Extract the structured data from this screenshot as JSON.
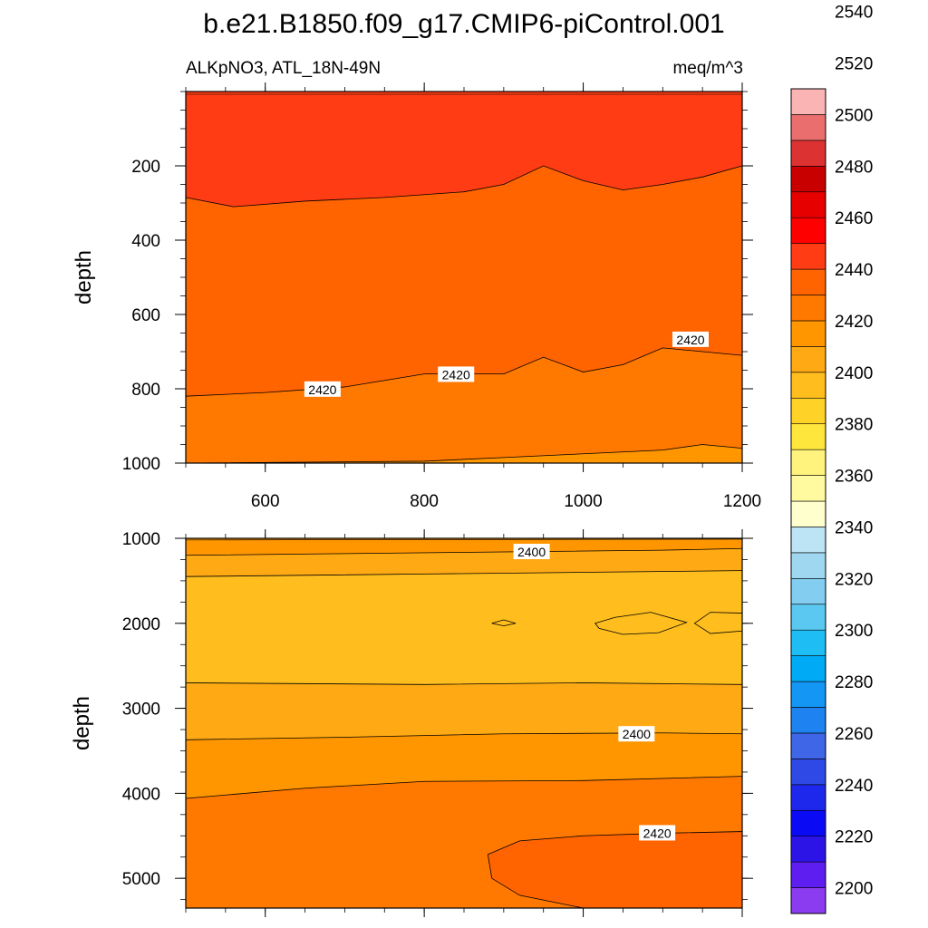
{
  "chart_data": {
    "type": "contour",
    "title": "b.e21.B1850.f09_g17.CMIP6-piControl.001",
    "subtitle_left": "ALKpNO3, ATL_18N-49N",
    "subtitle_right": "meq/m^3",
    "colors": [
      "#8c3cf0",
      "#5f1ef0",
      "#2d14e6",
      "#0a0af5",
      "#1e28ec",
      "#2e49e6",
      "#3e66e6",
      "#1e82f0",
      "#1496f5",
      "#00aaf5",
      "#1ebef5",
      "#5ac8f0",
      "#82cdf0",
      "#a0d7f0",
      "#bce4f5",
      "#fffecd",
      "#fffa9f",
      "#fff27d",
      "#ffe63c",
      "#ffd228",
      "#ffbe1e",
      "#ffaa14",
      "#ff9600",
      "#ff7800",
      "#ff6400",
      "#ff3c14",
      "#ff0000",
      "#e60000",
      "#c80000",
      "#dc3232",
      "#eb6e6e",
      "#fab4b4"
    ],
    "colorbar": {
      "levels_start": 2190,
      "levels_step": 10,
      "labels": [
        "2200",
        "2220",
        "2240",
        "2260",
        "2280",
        "2300",
        "2320",
        "2340",
        "2360",
        "2380",
        "2400",
        "2420",
        "2440",
        "2460",
        "2480",
        "2500",
        "2520",
        "2540"
      ]
    },
    "panels": [
      {
        "ylabel": "depth",
        "xlim": [
          500,
          1200
        ],
        "ylim": [
          0,
          1000
        ],
        "xticks": [
          "600",
          "800",
          "1000",
          "1200"
        ],
        "yticks": [
          "200",
          "400",
          "600",
          "800",
          "1000"
        ],
        "layers": [
          {
            "value": 2420,
            "boundary": [
              [
                500,
                820
              ],
              [
                600,
                810
              ],
              [
                700,
                795
              ],
              [
                800,
                760
              ],
              [
                900,
                760
              ],
              [
                950,
                715
              ],
              [
                1000,
                755
              ],
              [
                1050,
                735
              ],
              [
                1100,
                690
              ],
              [
                1150,
                700
              ],
              [
                1200,
                710
              ]
            ]
          },
          {
            "value": 2430,
            "boundary": [
              [
                500,
                285
              ],
              [
                560,
                310
              ],
              [
                650,
                295
              ],
              [
                750,
                285
              ],
              [
                850,
                270
              ],
              [
                900,
                250
              ],
              [
                950,
                200
              ],
              [
                1000,
                240
              ],
              [
                1050,
                265
              ],
              [
                1100,
                250
              ],
              [
                1150,
                230
              ],
              [
                1200,
                200
              ]
            ]
          },
          {
            "value": 2400,
            "boundary": [
              [
                500,
                1005
              ],
              [
                800,
                995
              ],
              [
                900,
                985
              ],
              [
                1000,
                975
              ],
              [
                1100,
                965
              ],
              [
                1150,
                950
              ],
              [
                1200,
                960
              ]
            ]
          }
        ],
        "contour_labels": [
          {
            "text": "2420",
            "x": 672,
            "y": 802
          },
          {
            "text": "2420",
            "x": 840,
            "y": 762
          },
          {
            "text": "2420",
            "x": 1135,
            "y": 668
          }
        ]
      },
      {
        "ylabel": "depth",
        "xlim": [
          500,
          1200
        ],
        "ylim": [
          1000,
          5350
        ],
        "xticks": [],
        "yticks": [
          "1000",
          "2000",
          "3000",
          "4000",
          "5000"
        ],
        "layers": [
          {
            "value": 2400,
            "boundary": [
              [
                500,
                1200
              ],
              [
                700,
                1180
              ],
              [
                900,
                1160
              ],
              [
                1100,
                1140
              ],
              [
                1200,
                1120
              ]
            ]
          },
          {
            "value": 2390,
            "boundary": [
              [
                500,
                1450
              ],
              [
                800,
                1420
              ],
              [
                1000,
                1400
              ],
              [
                1200,
                1380
              ]
            ]
          },
          {
            "value": 2390,
            "boundary": [
              [
                500,
                2700
              ],
              [
                800,
                2720
              ],
              [
                1000,
                2700
              ],
              [
                1200,
                2720
              ]
            ]
          },
          {
            "value": 2400,
            "boundary": [
              [
                500,
                3370
              ],
              [
                700,
                3340
              ],
              [
                900,
                3300
              ],
              [
                1100,
                3290
              ],
              [
                1200,
                3300
              ]
            ]
          },
          {
            "value": 2410,
            "boundary": [
              [
                500,
                4060
              ],
              [
                650,
                3940
              ],
              [
                800,
                3860
              ],
              [
                1000,
                3850
              ],
              [
                1200,
                3800
              ]
            ]
          }
        ],
        "islands": [
          {
            "value": 2380,
            "points": [
              [
                885,
                2000
              ],
              [
                900,
                1960
              ],
              [
                915,
                2000
              ],
              [
                900,
                2030
              ]
            ]
          },
          {
            "value": 2380,
            "points": [
              [
                1015,
                2000
              ],
              [
                1040,
                1930
              ],
              [
                1085,
                1870
              ],
              [
                1130,
                1990
              ],
              [
                1095,
                2110
              ],
              [
                1050,
                2130
              ],
              [
                1020,
                2060
              ]
            ]
          },
          {
            "value": 2380,
            "points": [
              [
                1140,
                2000
              ],
              [
                1160,
                1870
              ],
              [
                1200,
                1880
              ],
              [
                1200,
                2090
              ],
              [
                1160,
                2120
              ]
            ]
          },
          {
            "value": 2420,
            "points": [
              [
                1200,
                4450
              ],
              [
                1100,
                4470
              ],
              [
                1000,
                4500
              ],
              [
                920,
                4560
              ],
              [
                880,
                4720
              ],
              [
                885,
                5000
              ],
              [
                920,
                5200
              ],
              [
                1000,
                5350
              ],
              [
                1200,
                5350
              ]
            ]
          }
        ],
        "contour_labels": [
          {
            "text": "2400",
            "x": 935,
            "y": 1160
          },
          {
            "text": "2400",
            "x": 1067,
            "y": 3305
          },
          {
            "text": "2420",
            "x": 1093,
            "y": 4470
          }
        ]
      }
    ]
  }
}
